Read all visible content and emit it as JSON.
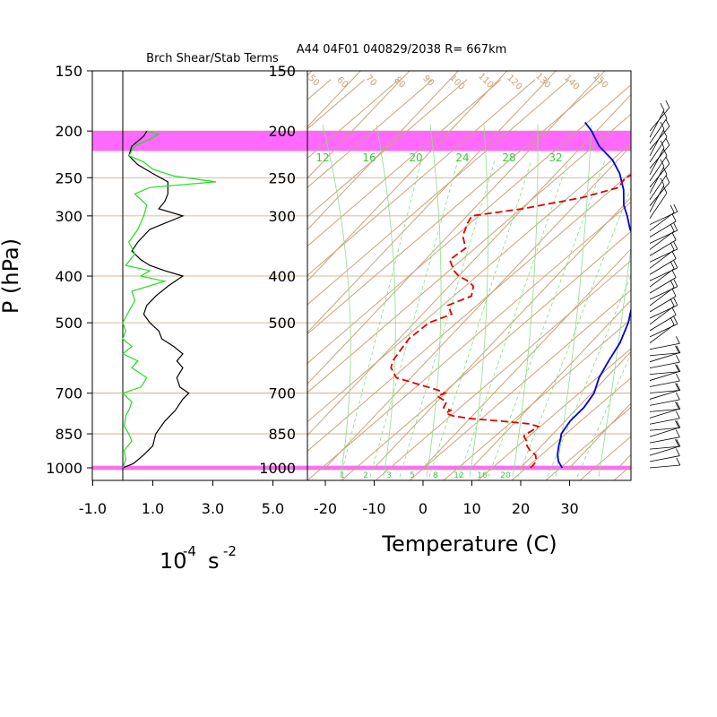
{
  "header": {
    "left_title": "Brch Shear/Stab Terms",
    "right_title": "A44 04F01 040829/2038 R= 667km"
  },
  "colors": {
    "isotherm": "#c8a47a",
    "mixing_ratio": "#7ee07e",
    "moist_adiabat": "#8fdc8f",
    "highlight": "#ff44ff",
    "temperature": "#0000dd",
    "dewpoint": "#e00000",
    "shear": "#000000",
    "stability": "#22dd22",
    "wind_barb": "#000000"
  },
  "axes": {
    "ylabel": "P (hPa)",
    "left_xlabel_base": "10",
    "left_xlabel_exp": "-4",
    "left_xlabel_unit": "s",
    "left_xlabel_unit_exp": "-2",
    "right_xlabel": "Temperature (C)"
  },
  "chart_data": [
    {
      "type": "line",
      "title": "Brch Shear/Stab Terms",
      "y_scale": "log",
      "y_range": [
        1000,
        150
      ],
      "x_range": [
        -1.0,
        5.0
      ],
      "x_ticks": [
        "-1.0",
        "1.0",
        "3.0",
        "5.0"
      ],
      "y_ticks": [
        150,
        200,
        250,
        300,
        400,
        500,
        700,
        850,
        1000
      ],
      "series": [
        {
          "color": "black",
          "values": [
            [
              1000,
              0.0
            ],
            [
              980,
              0.35
            ],
            [
              940,
              0.7
            ],
            [
              900,
              1.0
            ],
            [
              850,
              1.1
            ],
            [
              800,
              1.4
            ],
            [
              760,
              1.75
            ],
            [
              720,
              2.0
            ],
            [
              700,
              2.2
            ],
            [
              680,
              1.9
            ],
            [
              650,
              1.8
            ],
            [
              620,
              2.0
            ],
            [
              600,
              1.8
            ],
            [
              580,
              2.0
            ],
            [
              560,
              1.7
            ],
            [
              540,
              1.3
            ],
            [
              520,
              1.2
            ],
            [
              500,
              0.9
            ],
            [
              480,
              0.7
            ],
            [
              460,
              0.8
            ],
            [
              440,
              1.1
            ],
            [
              420,
              1.5
            ],
            [
              400,
              2.0
            ],
            [
              390,
              1.4
            ],
            [
              380,
              0.9
            ],
            [
              370,
              0.6
            ],
            [
              355,
              0.3
            ],
            [
              340,
              0.5
            ],
            [
              320,
              0.9
            ],
            [
              300,
              2.0
            ],
            [
              290,
              1.2
            ],
            [
              280,
              1.4
            ],
            [
              270,
              1.5
            ],
            [
              255,
              1.5
            ],
            [
              245,
              1.0
            ],
            [
              235,
              0.5
            ],
            [
              225,
              0.2
            ],
            [
              215,
              0.3
            ],
            [
              205,
              0.7
            ],
            [
              200,
              0.8
            ]
          ]
        },
        {
          "color": "green",
          "values": [
            [
              1000,
              0.0
            ],
            [
              960,
              0.1
            ],
            [
              920,
              0.05
            ],
            [
              880,
              0.3
            ],
            [
              850,
              0.2
            ],
            [
              820,
              0.05
            ],
            [
              780,
              0.1
            ],
            [
              760,
              0.2
            ],
            [
              730,
              0.3
            ],
            [
              700,
              0.0
            ],
            [
              680,
              0.6
            ],
            [
              650,
              0.8
            ],
            [
              620,
              0.3
            ],
            [
              600,
              0.5
            ],
            [
              580,
              0.0
            ],
            [
              560,
              0.3
            ],
            [
              540,
              0.0
            ],
            [
              520,
              0.1
            ],
            [
              500,
              0.0
            ],
            [
              480,
              0.15
            ],
            [
              450,
              0.4
            ],
            [
              430,
              0.3
            ],
            [
              410,
              1.4
            ],
            [
              400,
              0.6
            ],
            [
              390,
              0.9
            ],
            [
              380,
              0.1
            ],
            [
              360,
              0.4
            ],
            [
              340,
              0.2
            ],
            [
              320,
              0.5
            ],
            [
              300,
              0.7
            ],
            [
              285,
              0.8
            ],
            [
              270,
              0.4
            ],
            [
              262,
              0.9
            ],
            [
              255,
              3.1
            ],
            [
              248,
              1.7
            ],
            [
              240,
              1.0
            ],
            [
              232,
              0.7
            ],
            [
              225,
              0.2
            ],
            [
              215,
              0.4
            ],
            [
              208,
              0.9
            ],
            [
              203,
              1.2
            ],
            [
              200,
              0.8
            ]
          ]
        }
      ]
    },
    {
      "type": "line",
      "title": "A44 04F01 040829/2038 R= 667km",
      "xlabel": "Temperature (C)",
      "ylabel": "P (hPa)",
      "y_scale": "log",
      "y_range": [
        1000,
        150
      ],
      "x_ticks": [
        -20,
        -10,
        0,
        10,
        20,
        30
      ],
      "y_ticks": [
        150,
        200,
        250,
        300,
        400,
        500,
        700,
        850,
        1000
      ],
      "mixing_ratio_labels_top": [
        "12",
        "16",
        "20",
        "24",
        "28",
        "32"
      ],
      "mixing_ratio_labels_bottom": [
        "1",
        "2",
        "3",
        "5",
        "8",
        "12",
        "16",
        "20"
      ],
      "adiabat_labels": [
        "50",
        "60",
        "70",
        "80",
        "90",
        "100",
        "110",
        "120",
        "130",
        "140",
        "150"
      ],
      "highlight_layers_hPa": [
        [
          200,
          220
        ],
        [
          990,
          1010
        ]
      ],
      "series": [
        {
          "name": "",
          "color": "blue",
          "style": "solid",
          "values": [
            [
              1000,
              28.5
            ],
            [
              970,
              26.5
            ],
            [
              940,
              25.0
            ],
            [
              900,
              23.5
            ],
            [
              870,
              22.5
            ],
            [
              850,
              21.7
            ],
            [
              800,
              21.0
            ],
            [
              750,
              21.2
            ],
            [
              700,
              20.5
            ],
            [
              650,
              18.5
            ],
            [
              600,
              17.2
            ],
            [
              550,
              16.0
            ],
            [
              500,
              13.8
            ],
            [
              450,
              10.5
            ],
            [
              420,
              8.2
            ],
            [
              400,
              6.3
            ],
            [
              370,
              3.3
            ],
            [
              340,
              0.0
            ],
            [
              320,
              -4.0
            ],
            [
              300,
              -7.2
            ],
            [
              285,
              -10.0
            ],
            [
              265,
              -13.0
            ],
            [
              245,
              -17.0
            ],
            [
              230,
              -21.0
            ],
            [
              215,
              -26.5
            ],
            [
              200,
              -31.0
            ],
            [
              192,
              -34.0
            ]
          ]
        },
        {
          "name": "",
          "color": "red",
          "style": "dashed",
          "values": [
            [
              1000,
              22.0
            ],
            [
              980,
              22.0
            ],
            [
              960,
              21.5
            ],
            [
              940,
              20.5
            ],
            [
              920,
              18.5
            ],
            [
              900,
              17.0
            ],
            [
              880,
              16.0
            ],
            [
              860,
              14.5
            ],
            [
              850,
              14.5
            ],
            [
              840,
              15.0
            ],
            [
              820,
              15.5
            ],
            [
              810,
              13.0
            ],
            [
              800,
              7.0
            ],
            [
              790,
              0.0
            ],
            [
              780,
              -4.0
            ],
            [
              770,
              -6.0
            ],
            [
              760,
              -5.5
            ],
            [
              750,
              -7.5
            ],
            [
              730,
              -8.0
            ],
            [
              710,
              -11.0
            ],
            [
              700,
              -10.0
            ],
            [
              690,
              -12.0
            ],
            [
              650,
              -23.0
            ],
            [
              620,
              -26.0
            ],
            [
              600,
              -27.0
            ],
            [
              570,
              -27.5
            ],
            [
              540,
              -28.0
            ],
            [
              520,
              -27.5
            ],
            [
              500,
              -27.0
            ],
            [
              480,
              -24.0
            ],
            [
              460,
              -26.5
            ],
            [
              440,
              -23.5
            ],
            [
              420,
              -25.0
            ],
            [
              410,
              -27.0
            ],
            [
              400,
              -30.0
            ],
            [
              390,
              -32.0
            ],
            [
              370,
              -35.0
            ],
            [
              350,
              -34.0
            ],
            [
              330,
              -37.0
            ],
            [
              310,
              -38.5
            ],
            [
              300,
              -39.0
            ],
            [
              290,
              -30.0
            ],
            [
              275,
              -20.0
            ],
            [
              262,
              -14.5
            ],
            [
              250,
              -15.0
            ],
            [
              240,
              -13.0
            ],
            [
              228,
              -11.5
            ],
            [
              222,
              -15.0
            ]
          ]
        }
      ],
      "wind_barbs": {
        "color": "black",
        "note": "sequence of wind barbs along right edge from 1000 hPa to 200 hPa"
      }
    }
  ]
}
